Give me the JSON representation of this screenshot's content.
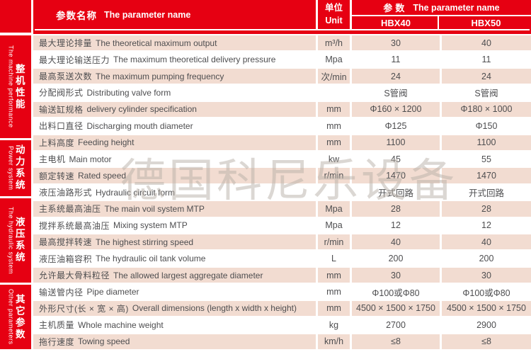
{
  "header": {
    "param_name_zh": "参数名称",
    "param_name_en": "The parameter name",
    "unit_zh": "单位",
    "unit_en": "Unit",
    "params_zh": "参数",
    "params_en": "The parameter name",
    "models": [
      "HBX40",
      "HBX50"
    ]
  },
  "sections": [
    {
      "zh": "整机性能",
      "en": "The machine performance",
      "row_span": 7
    },
    {
      "zh": "动力系统",
      "en": "Power system",
      "row_span": 3
    },
    {
      "zh": "液压系统",
      "en": "The hydraulic system",
      "row_span": 6
    },
    {
      "zh": "其它参数",
      "en": "Other parameters",
      "row_span": 3
    }
  ],
  "rows": [
    {
      "zh": "最大理论排量",
      "en": "The theoretical maximum output",
      "unit": "m³/h",
      "hbx40": "30",
      "hbx50": "40"
    },
    {
      "zh": "最大理论输送压力",
      "en": "The maximum theoretical delivery pressure",
      "unit": "Mpa",
      "hbx40": "11",
      "hbx50": "11"
    },
    {
      "zh": "最高泵送次数",
      "en": "The maximum pumping frequency",
      "unit": "次/min",
      "hbx40": "24",
      "hbx50": "24"
    },
    {
      "zh": "分配阀形式",
      "en": "Distributing valve form",
      "unit": "",
      "hbx40": "S管阀",
      "hbx50": "S管阀"
    },
    {
      "zh": "输送缸规格",
      "en": "delivery cylinder specification",
      "unit": "mm",
      "hbx40": "Φ160 × 1200",
      "hbx50": "Φ180 × 1000"
    },
    {
      "zh": "出料口直径",
      "en": "Discharging mouth diameter",
      "unit": "mm",
      "hbx40": "Φ125",
      "hbx50": "Φ150"
    },
    {
      "zh": "上料高度",
      "en": "Feeding height",
      "unit": "mm",
      "hbx40": "1100",
      "hbx50": "1100"
    },
    {
      "zh": "主电机",
      "en": "Main motor",
      "unit": "kw",
      "hbx40": "45",
      "hbx50": "55"
    },
    {
      "zh": "额定转速",
      "en": "Rated speed",
      "unit": "r/min",
      "hbx40": "1470",
      "hbx50": "1470"
    },
    {
      "zh": "液压油路形式",
      "en": "Hydraulic circuit form",
      "unit": "",
      "hbx40": "开式回路",
      "hbx50": "开式回路"
    },
    {
      "zh": "主系统最高油压",
      "en": "The main voil system MTP",
      "unit": "Mpa",
      "hbx40": "28",
      "hbx50": "28"
    },
    {
      "zh": "搅拌系统最高油压",
      "en": "Mixing system MTP",
      "unit": "Mpa",
      "hbx40": "12",
      "hbx50": "12"
    },
    {
      "zh": "最高搅拌转速",
      "en": "The highest stirring speed",
      "unit": "r/min",
      "hbx40": "40",
      "hbx50": "40"
    },
    {
      "zh": "液压油箱容积",
      "en": "The hydraulic oil tank volume",
      "unit": "L",
      "hbx40": "200",
      "hbx50": "200"
    },
    {
      "zh": "允许最大骨料粒径",
      "en": "The allowed largest aggregate diameter",
      "unit": "mm",
      "hbx40": "30",
      "hbx50": "30"
    },
    {
      "zh": "输送管内径",
      "en": "Pipe diameter",
      "unit": "mm",
      "hbx40": "Φ100或Φ80",
      "hbx50": "Φ100或Φ80"
    },
    {
      "zh": "外形尺寸(长 × 宽 × 高)",
      "en": "Overall dimensions (length x width x height)",
      "unit": "mm",
      "hbx40": "4500 × 1500 × 1750",
      "hbx50": "4500 × 1500 × 1750"
    },
    {
      "zh": "主机质量",
      "en": "Whole machine weight",
      "unit": "kg",
      "hbx40": "2700",
      "hbx50": "2900"
    },
    {
      "zh": "拖行速度",
      "en": "Towing speed",
      "unit": "km/h",
      "hbx40": "≤8",
      "hbx50": "≤8"
    }
  ],
  "watermark": "德国科尼乐设备",
  "colors": {
    "red": "#e60012",
    "row_pink": "#f2dcd1",
    "text": "#4e4e50"
  }
}
